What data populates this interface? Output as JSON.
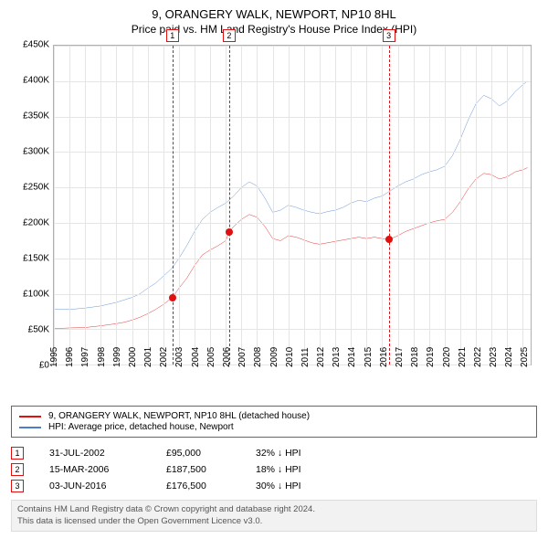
{
  "title": {
    "line1": "9, ORANGERY WALK, NEWPORT, NP10 8HL",
    "line2": "Price paid vs. HM Land Registry's House Price Index (HPI)"
  },
  "chart": {
    "type": "line",
    "background_color": "#ffffff",
    "grid_color": "#e5e5e5",
    "border_color": "#b0b0b0",
    "y": {
      "min": 0,
      "max": 450000,
      "tick_step": 50000,
      "ticks": [
        "£0",
        "£50K",
        "£100K",
        "£150K",
        "£200K",
        "£250K",
        "£300K",
        "£350K",
        "£400K",
        "£450K"
      ]
    },
    "x": {
      "min": 1995,
      "max": 2025.5,
      "ticks": [
        1995,
        1996,
        1997,
        1998,
        1999,
        2000,
        2001,
        2002,
        2003,
        2004,
        2005,
        2006,
        2007,
        2008,
        2009,
        2010,
        2011,
        2012,
        2013,
        2014,
        2015,
        2016,
        2017,
        2018,
        2019,
        2020,
        2021,
        2022,
        2023,
        2024,
        2025
      ]
    },
    "series": [
      {
        "id": "property",
        "label": "9, ORANGERY WALK, NEWPORT, NP10 8HL (detached house)",
        "color": "#e01010",
        "line_width": 1.5,
        "points": [
          [
            1995.0,
            51000
          ],
          [
            1996.0,
            52000
          ],
          [
            1997.0,
            52500
          ],
          [
            1998.0,
            55000
          ],
          [
            1999.0,
            58000
          ],
          [
            1999.5,
            60000
          ],
          [
            2000.0,
            63000
          ],
          [
            2000.5,
            67000
          ],
          [
            2001.0,
            72000
          ],
          [
            2001.5,
            78000
          ],
          [
            2002.0,
            85000
          ],
          [
            2002.58,
            95000
          ],
          [
            2003.0,
            108000
          ],
          [
            2003.5,
            122000
          ],
          [
            2004.0,
            140000
          ],
          [
            2004.5,
            155000
          ],
          [
            2005.0,
            162000
          ],
          [
            2005.5,
            168000
          ],
          [
            2006.0,
            175000
          ],
          [
            2006.21,
            187500
          ],
          [
            2006.5,
            195000
          ],
          [
            2007.0,
            205000
          ],
          [
            2007.5,
            212000
          ],
          [
            2008.0,
            208000
          ],
          [
            2008.5,
            195000
          ],
          [
            2009.0,
            178000
          ],
          [
            2009.5,
            175000
          ],
          [
            2010.0,
            182000
          ],
          [
            2010.5,
            180000
          ],
          [
            2011.0,
            176000
          ],
          [
            2011.5,
            172000
          ],
          [
            2012.0,
            170000
          ],
          [
            2012.5,
            172000
          ],
          [
            2013.0,
            174000
          ],
          [
            2013.5,
            176000
          ],
          [
            2014.0,
            178000
          ],
          [
            2014.5,
            180000
          ],
          [
            2015.0,
            178000
          ],
          [
            2015.5,
            180000
          ],
          [
            2016.0,
            178000
          ],
          [
            2016.42,
            176500
          ],
          [
            2017.0,
            182000
          ],
          [
            2017.5,
            188000
          ],
          [
            2018.0,
            192000
          ],
          [
            2018.5,
            196000
          ],
          [
            2019.0,
            200000
          ],
          [
            2019.5,
            203000
          ],
          [
            2020.0,
            205000
          ],
          [
            2020.5,
            215000
          ],
          [
            2021.0,
            230000
          ],
          [
            2021.5,
            248000
          ],
          [
            2022.0,
            262000
          ],
          [
            2022.5,
            270000
          ],
          [
            2023.0,
            268000
          ],
          [
            2023.5,
            262000
          ],
          [
            2024.0,
            265000
          ],
          [
            2024.5,
            272000
          ],
          [
            2025.0,
            275000
          ],
          [
            2025.3,
            278000
          ]
        ]
      },
      {
        "id": "hpi",
        "label": "HPI: Average price, detached house, Newport",
        "color": "#4a7fd0",
        "line_width": 1.5,
        "points": [
          [
            1995.0,
            78000
          ],
          [
            1996.0,
            78000
          ],
          [
            1997.0,
            80000
          ],
          [
            1998.0,
            83000
          ],
          [
            1999.0,
            88000
          ],
          [
            2000.0,
            95000
          ],
          [
            2000.5,
            100000
          ],
          [
            2001.0,
            108000
          ],
          [
            2001.5,
            115000
          ],
          [
            2002.0,
            125000
          ],
          [
            2002.5,
            135000
          ],
          [
            2003.0,
            150000
          ],
          [
            2003.5,
            168000
          ],
          [
            2004.0,
            188000
          ],
          [
            2004.5,
            205000
          ],
          [
            2005.0,
            215000
          ],
          [
            2005.5,
            222000
          ],
          [
            2006.0,
            228000
          ],
          [
            2006.5,
            238000
          ],
          [
            2007.0,
            250000
          ],
          [
            2007.5,
            258000
          ],
          [
            2008.0,
            252000
          ],
          [
            2008.5,
            235000
          ],
          [
            2009.0,
            215000
          ],
          [
            2009.5,
            218000
          ],
          [
            2010.0,
            225000
          ],
          [
            2010.5,
            222000
          ],
          [
            2011.0,
            218000
          ],
          [
            2011.5,
            215000
          ],
          [
            2012.0,
            213000
          ],
          [
            2012.5,
            216000
          ],
          [
            2013.0,
            218000
          ],
          [
            2013.5,
            222000
          ],
          [
            2014.0,
            228000
          ],
          [
            2014.5,
            232000
          ],
          [
            2015.0,
            230000
          ],
          [
            2015.5,
            235000
          ],
          [
            2016.0,
            238000
          ],
          [
            2016.5,
            245000
          ],
          [
            2017.0,
            252000
          ],
          [
            2017.5,
            258000
          ],
          [
            2018.0,
            262000
          ],
          [
            2018.5,
            268000
          ],
          [
            2019.0,
            272000
          ],
          [
            2019.5,
            275000
          ],
          [
            2020.0,
            280000
          ],
          [
            2020.5,
            295000
          ],
          [
            2021.0,
            318000
          ],
          [
            2021.5,
            345000
          ],
          [
            2022.0,
            368000
          ],
          [
            2022.5,
            380000
          ],
          [
            2023.0,
            375000
          ],
          [
            2023.5,
            365000
          ],
          [
            2024.0,
            372000
          ],
          [
            2024.5,
            385000
          ],
          [
            2025.0,
            395000
          ],
          [
            2025.3,
            400000
          ]
        ]
      }
    ],
    "sale_markers": [
      {
        "n": "1",
        "x": 2002.58,
        "y": 95000,
        "color": "#e01010"
      },
      {
        "n": "2",
        "x": 2006.21,
        "y": 187500,
        "color": "#e01010"
      },
      {
        "n": "3",
        "x": 2016.42,
        "y": 176500,
        "color": "#e01010"
      }
    ]
  },
  "legend": {
    "rows": [
      {
        "color": "#e01010",
        "label": "9, ORANGERY WALK, NEWPORT, NP10 8HL (detached house)"
      },
      {
        "color": "#4a7fd0",
        "label": "HPI: Average price, detached house, Newport"
      }
    ]
  },
  "sales_table": {
    "rows": [
      {
        "n": "1",
        "color": "#e01010",
        "date": "31-JUL-2002",
        "price": "£95,000",
        "delta": "32% ↓ HPI"
      },
      {
        "n": "2",
        "color": "#e01010",
        "date": "15-MAR-2006",
        "price": "£187,500",
        "delta": "18% ↓ HPI"
      },
      {
        "n": "3",
        "color": "#e01010",
        "date": "03-JUN-2016",
        "price": "£176,500",
        "delta": "30% ↓ HPI"
      }
    ]
  },
  "footer": {
    "line1": "Contains HM Land Registry data © Crown copyright and database right 2024.",
    "line2": "This data is licensed under the Open Government Licence v3.0."
  }
}
